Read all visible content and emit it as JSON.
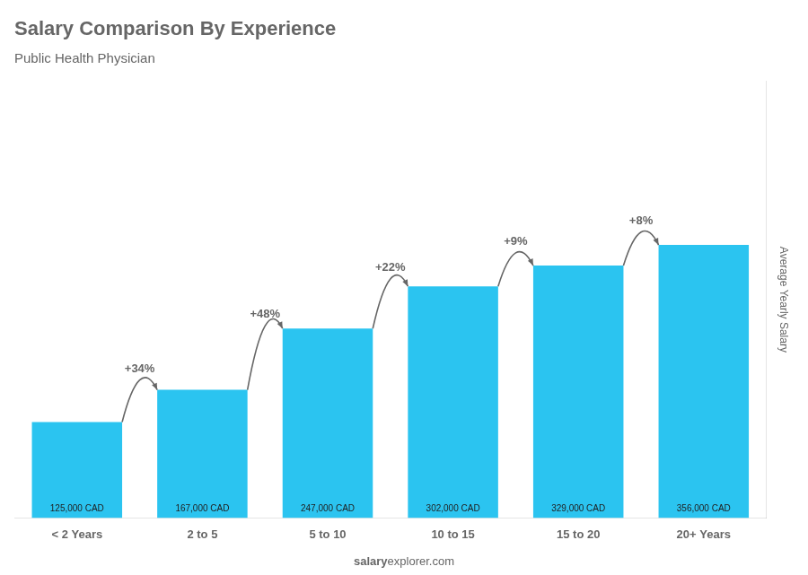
{
  "chart_data": {
    "type": "bar",
    "title": "Salary Comparison By Experience",
    "subtitle": "Public Health Physician",
    "y_label": "Average Yearly Salary",
    "categories": [
      "< 2 Years",
      "2 to 5",
      "5 to 10",
      "10 to 15",
      "15 to 20",
      "20+ Years"
    ],
    "values": [
      125000,
      167000,
      247000,
      302000,
      329000,
      356000
    ],
    "value_labels": [
      "125,000 CAD",
      "167,000 CAD",
      "247,000 CAD",
      "302,000 CAD",
      "329,000 CAD",
      "356,000 CAD"
    ],
    "data_labels": true,
    "color": "#2BC4F0",
    "change_labels": [
      "+34%",
      "+48%",
      "+22%",
      "+9%",
      "+8%"
    ],
    "footer": [
      "salary",
      "explorer.com"
    ],
    "ylim": [
      0,
      569600
    ],
    "grid": false,
    "tick_labels": "x"
  }
}
